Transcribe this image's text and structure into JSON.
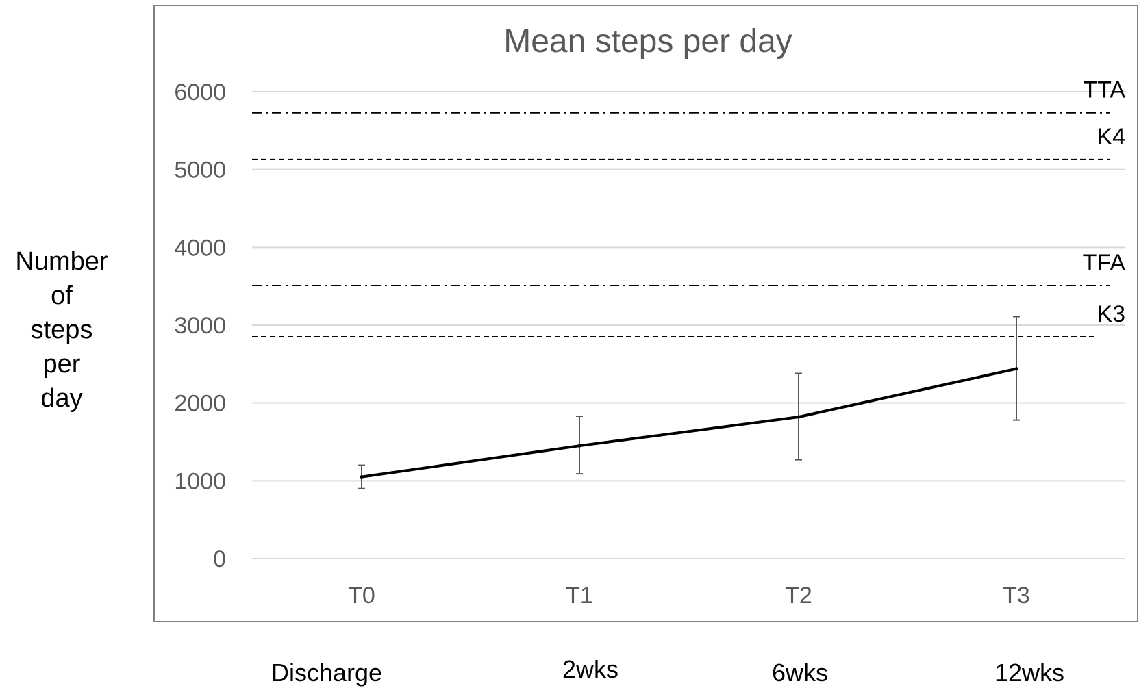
{
  "chart_data": {
    "type": "line",
    "title": "Mean steps per day",
    "ylabel_lines": [
      "Number",
      "of",
      "steps",
      "per",
      "day"
    ],
    "categories": [
      "T0",
      "T1",
      "T2",
      "T3"
    ],
    "time_labels": [
      "Discharge",
      "2wks",
      "6wks",
      "12wks"
    ],
    "ylim": [
      0,
      6000
    ],
    "yticks": [
      0,
      1000,
      2000,
      3000,
      4000,
      5000,
      6000
    ],
    "grid": true,
    "series": [
      {
        "values": [
          1050,
          1450,
          1820,
          2440
        ],
        "error_low": [
          900,
          1090,
          1270,
          1780
        ],
        "error_high": [
          1200,
          1830,
          2380,
          3110
        ],
        "color": "#000000"
      }
    ],
    "reference_lines": [
      {
        "label": "TTA",
        "value": 5730,
        "style": "dash-dot"
      },
      {
        "label": "K4",
        "value": 5130,
        "style": "dashed"
      },
      {
        "label": "TFA",
        "value": 3510,
        "style": "dash-dot"
      },
      {
        "label": "K3",
        "value": 2850,
        "style": "dashed"
      }
    ],
    "colors": {
      "grid": "#d9d9d9",
      "axis_text": "#595959",
      "frame": "#808080"
    }
  }
}
